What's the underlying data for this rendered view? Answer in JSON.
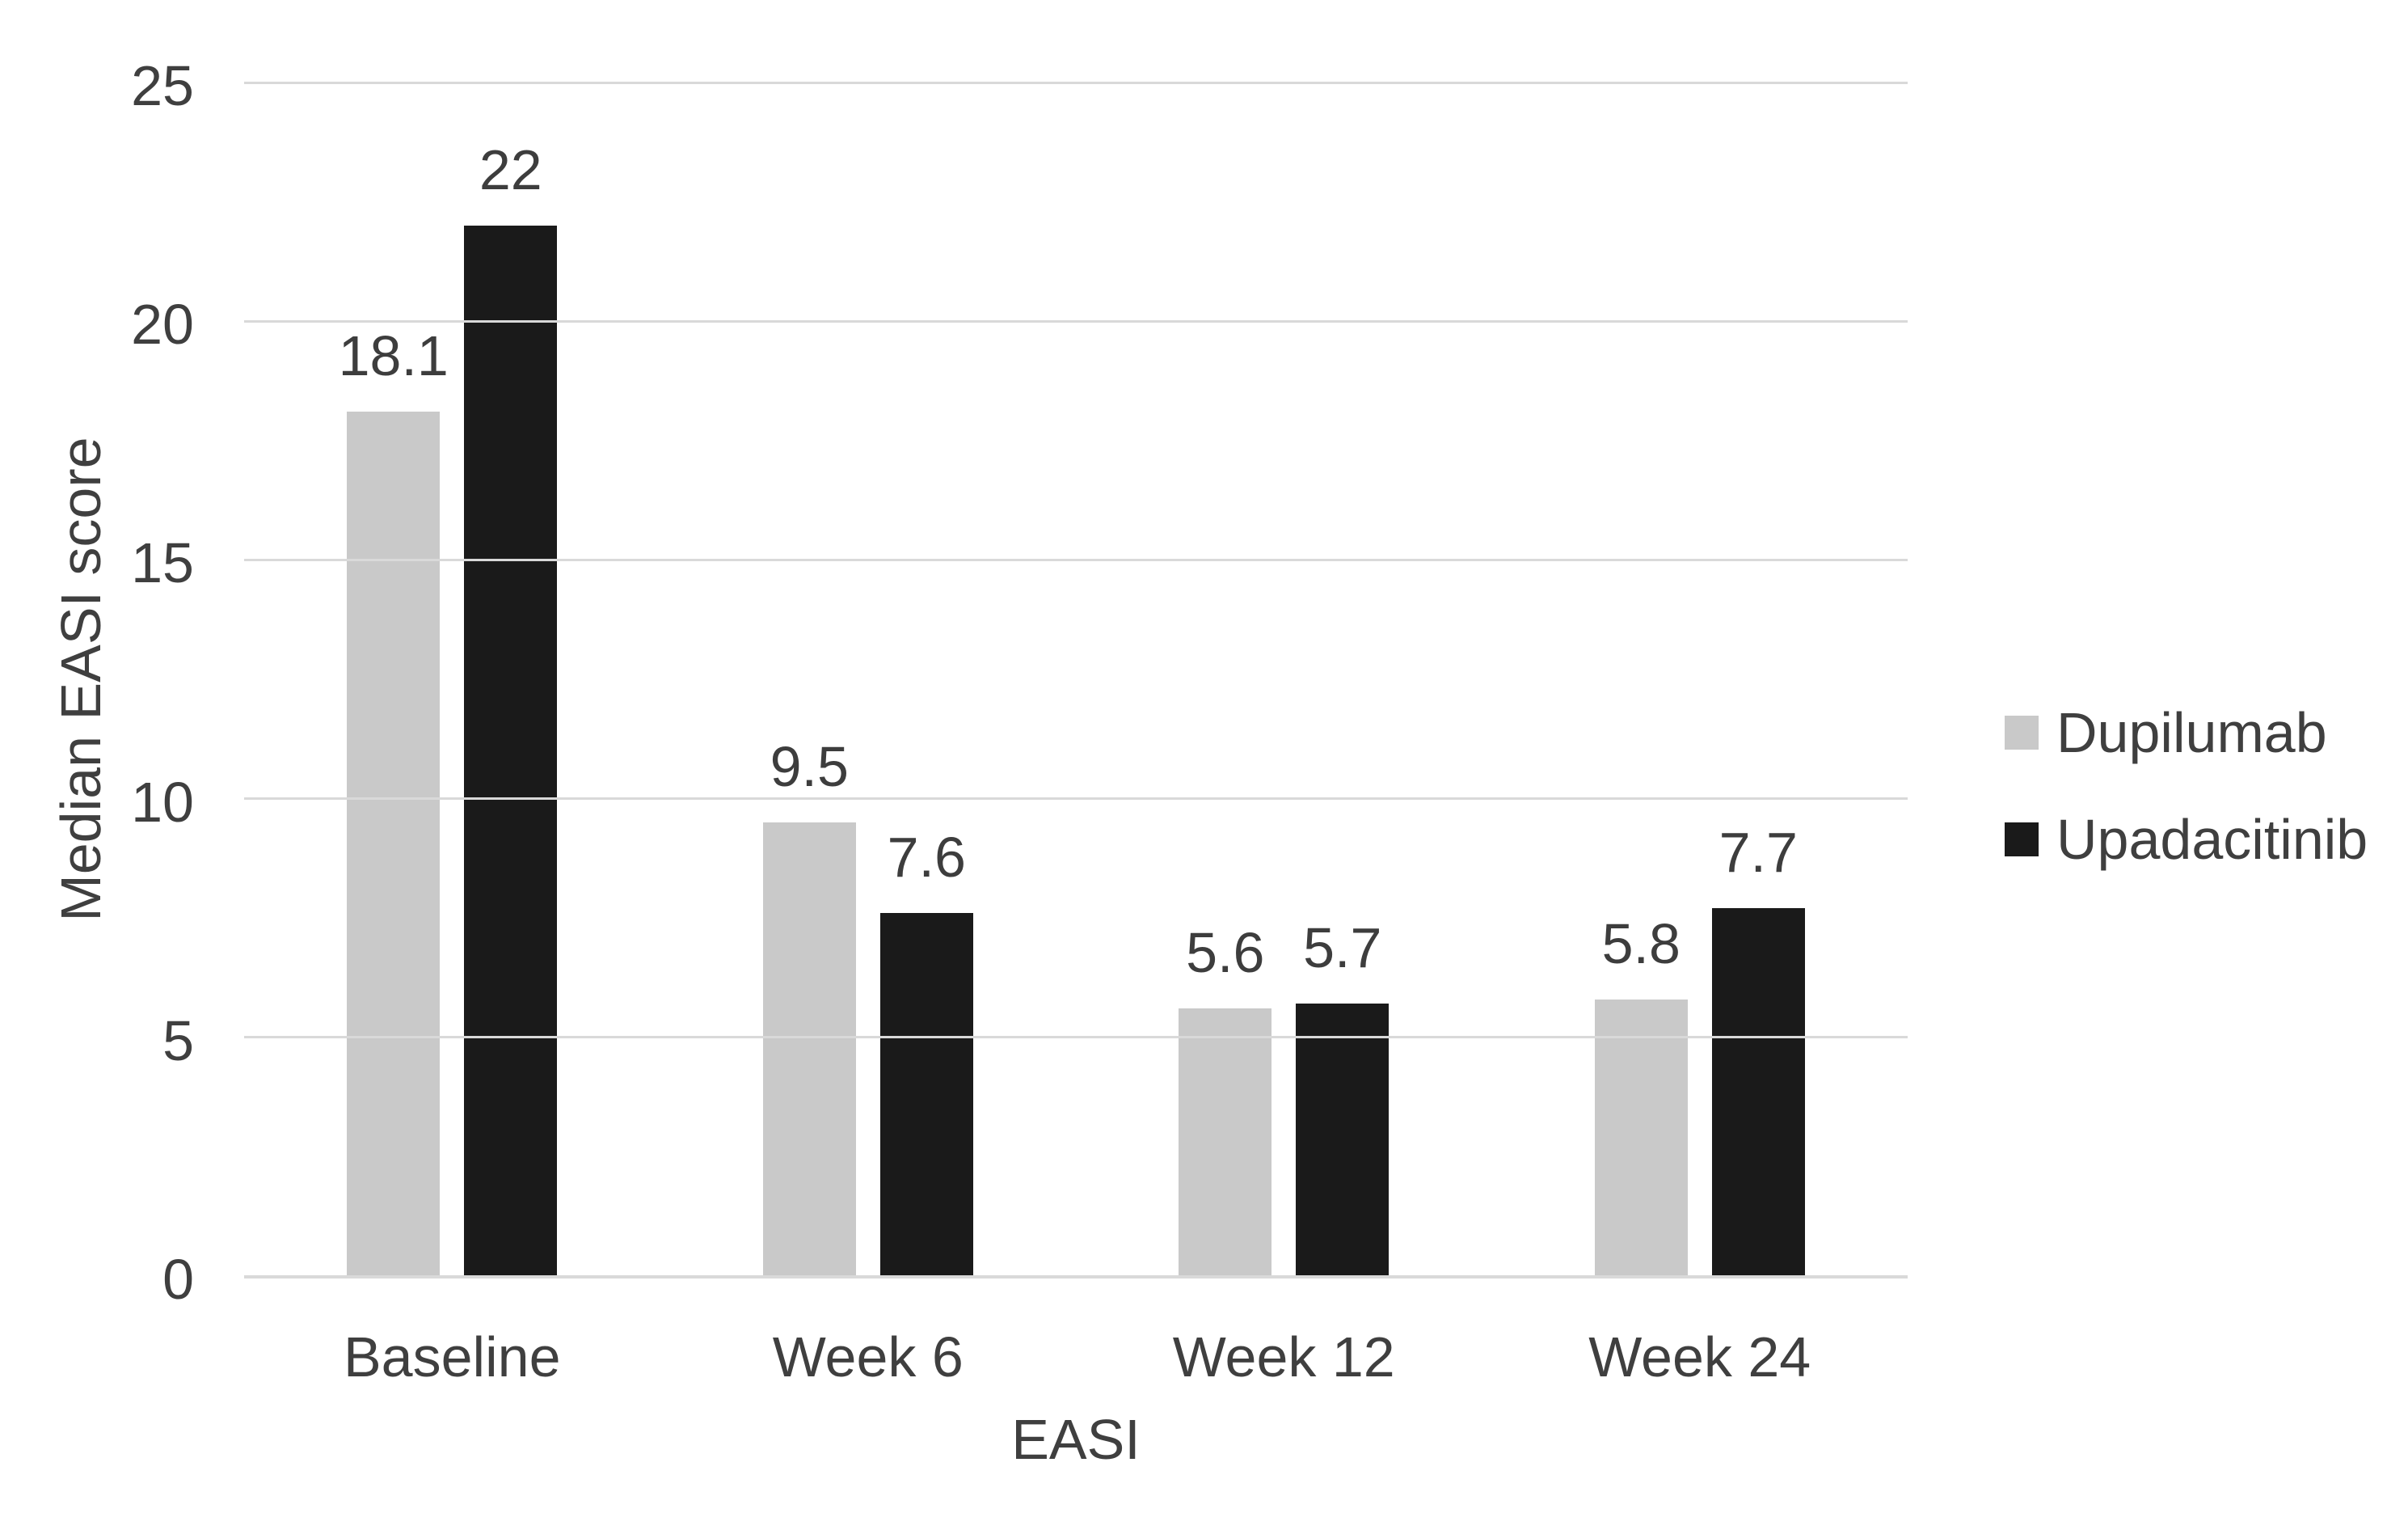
{
  "chart_data": {
    "type": "bar",
    "title": "",
    "categories": [
      "Baseline",
      "Week 6",
      "Week 12",
      "Week 24"
    ],
    "series": [
      {
        "name": "Dupilumab",
        "color": "#c9c9c9",
        "values": [
          18.1,
          9.5,
          5.6,
          5.8
        ],
        "value_labels": [
          "18.1",
          "9.5",
          "5.6",
          "5.8"
        ]
      },
      {
        "name": "Upadacitinib",
        "color": "#1a1a1a",
        "values": [
          22,
          7.6,
          5.7,
          7.7
        ],
        "value_labels": [
          "22",
          "7.6",
          "5.7",
          "7.7"
        ]
      }
    ],
    "xlabel": "EASI",
    "ylabel": "Median EASI score",
    "ylim": [
      0,
      25
    ],
    "yticks": [
      0,
      5,
      10,
      15,
      20,
      25
    ],
    "grid": true,
    "legend_position": "right"
  },
  "colors": {
    "background": "#ffffff",
    "gridline": "#d9d9d9",
    "text": "#3f3f3f"
  }
}
